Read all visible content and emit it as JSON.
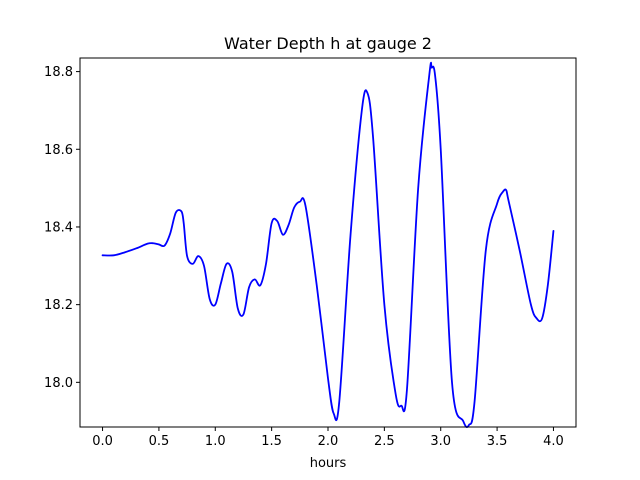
{
  "chart_data": {
    "type": "line",
    "title": "Water Depth h at gauge 2",
    "xlabel": "hours",
    "ylabel": "",
    "xlim": [
      -0.2,
      4.2
    ],
    "ylim": [
      17.885,
      18.835
    ],
    "xticks": [
      0.0,
      0.5,
      1.0,
      1.5,
      2.0,
      2.5,
      3.0,
      3.5,
      4.0
    ],
    "xtick_labels": [
      "0.0",
      "0.5",
      "1.0",
      "1.5",
      "2.0",
      "2.5",
      "3.0",
      "3.5",
      "4.0"
    ],
    "yticks": [
      18.0,
      18.2,
      18.4,
      18.6,
      18.8
    ],
    "ytick_labels": [
      "18.0",
      "18.2",
      "18.4",
      "18.6",
      "18.8"
    ],
    "grid": false,
    "series": [
      {
        "color": "#0000ff",
        "x": [
          0.0,
          0.1,
          0.2,
          0.3,
          0.4,
          0.45,
          0.5,
          0.55,
          0.6,
          0.65,
          0.7,
          0.72,
          0.75,
          0.8,
          0.85,
          0.9,
          0.95,
          1.0,
          1.05,
          1.1,
          1.15,
          1.2,
          1.25,
          1.3,
          1.35,
          1.4,
          1.45,
          1.5,
          1.55,
          1.6,
          1.65,
          1.7,
          1.75,
          1.8,
          1.9,
          2.0,
          2.05,
          2.1,
          2.2,
          2.3,
          2.35,
          2.4,
          2.5,
          2.6,
          2.65,
          2.7,
          2.8,
          2.9,
          2.92,
          2.95,
          3.0,
          3.1,
          3.2,
          3.25,
          3.3,
          3.4,
          3.5,
          3.55,
          3.58,
          3.6,
          3.7,
          3.8,
          3.85,
          3.9,
          3.95,
          4.0
        ],
        "y": [
          18.327,
          18.327,
          18.335,
          18.345,
          18.357,
          18.358,
          18.355,
          18.352,
          18.383,
          18.437,
          18.44,
          18.41,
          18.325,
          18.305,
          18.325,
          18.3,
          18.215,
          18.2,
          18.255,
          18.305,
          18.285,
          18.19,
          18.175,
          18.245,
          18.265,
          18.25,
          18.305,
          18.41,
          18.415,
          18.38,
          18.405,
          18.45,
          18.465,
          18.455,
          18.25,
          18.01,
          17.92,
          17.95,
          18.38,
          18.7,
          18.745,
          18.63,
          18.2,
          17.97,
          17.94,
          17.98,
          18.5,
          18.795,
          18.81,
          18.79,
          18.6,
          18.0,
          17.9,
          17.89,
          17.95,
          18.34,
          18.46,
          18.49,
          18.495,
          18.47,
          18.34,
          18.2,
          18.165,
          18.165,
          18.25,
          18.39
        ]
      }
    ]
  }
}
